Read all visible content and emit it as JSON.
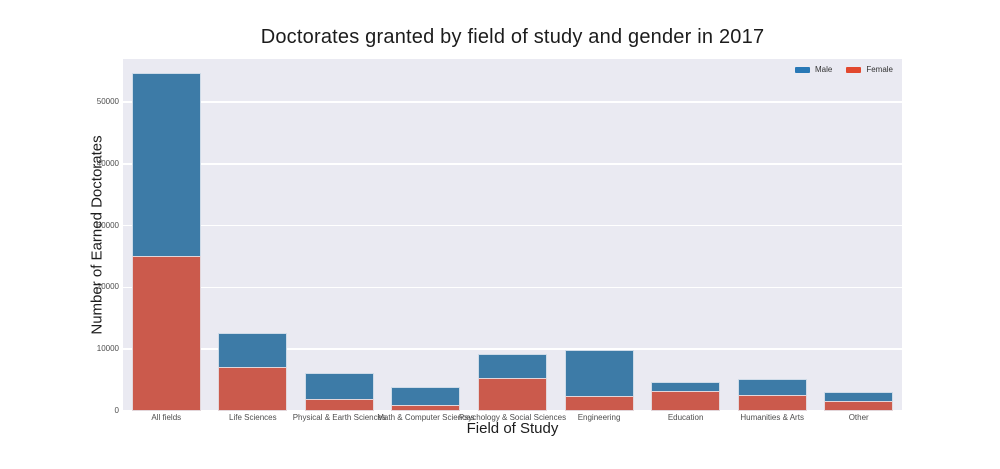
{
  "title": "Doctorates granted by field of study and gender in 2017",
  "legend": {
    "items": [
      {
        "label": "Male",
        "color": "#2878b6"
      },
      {
        "label": "Female",
        "color": "#e2482e"
      }
    ]
  },
  "colors": {
    "plot_background": "#eaeaf2",
    "grid": "#ffffff",
    "male_bar": "#3d7ba7",
    "female_bar": "#cb5a4c",
    "title_text": "#1c1c1c",
    "tick_text": "#4d4d4d"
  },
  "chart_data": {
    "type": "bar",
    "stacked": true,
    "title": "Doctorates granted by field of study and gender in 2017",
    "xlabel": "Field of Study",
    "ylabel": "Number of Earned Doctorates",
    "categories": [
      "All fields",
      "Life Sciences",
      "Physical & Earth Sciences",
      "Math & Computer Sciences",
      "Psychology & Social Sciences",
      "Engineering",
      "Education",
      "Humanities & Arts",
      "Other"
    ],
    "series": [
      {
        "name": "Male",
        "color": "#3d7ba7",
        "values": [
          29596,
          5487,
          4142,
          2982,
          3876,
          7492,
          1531,
          2549,
          1380
        ]
      },
      {
        "name": "Female",
        "color": "#cb5a4c",
        "values": [
          25068,
          7105,
          2010,
          977,
          5323,
          2353,
          3292,
          2668,
          1650
        ]
      }
    ],
    "ylim": [
      0,
      57000
    ],
    "yticks": [
      0,
      10000,
      20000,
      30000,
      40000,
      50000
    ],
    "grid": true,
    "legend_position": "upper right"
  }
}
